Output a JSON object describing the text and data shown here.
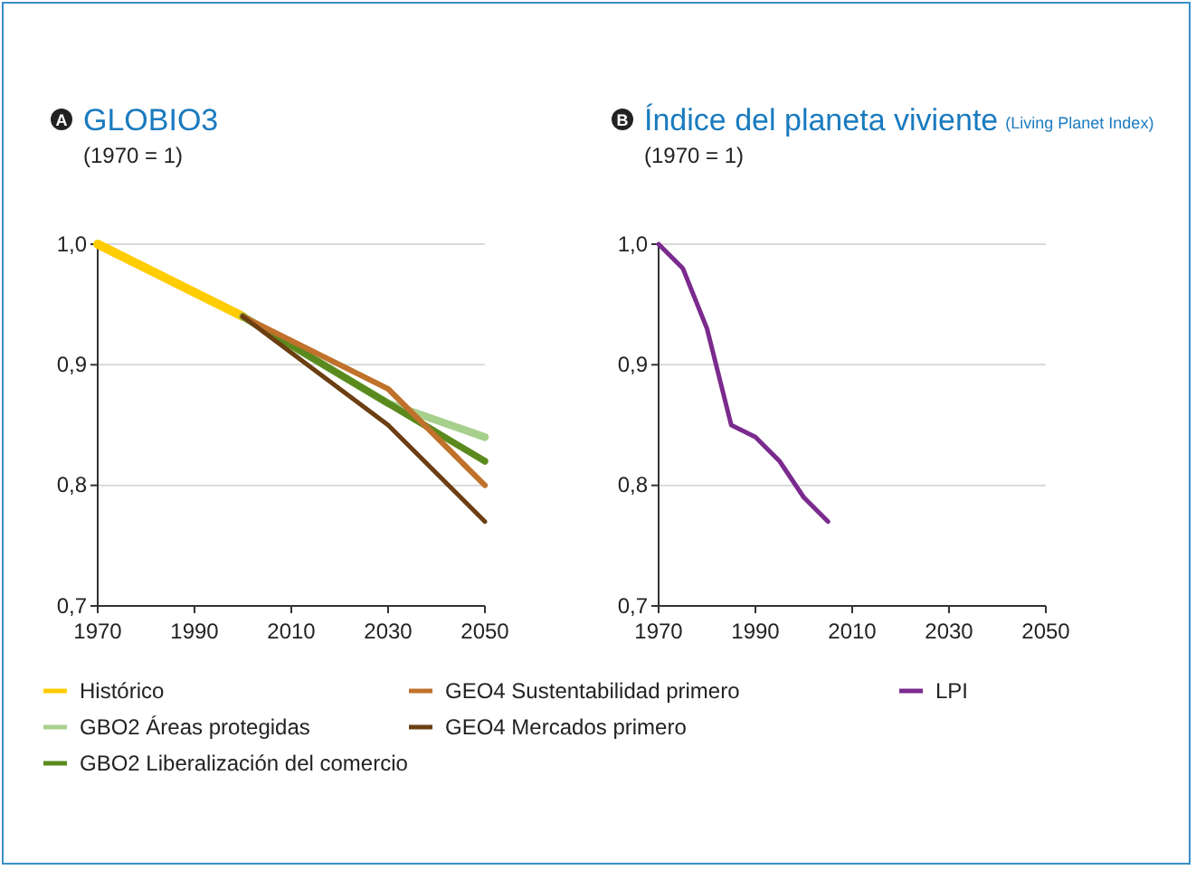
{
  "chart_data": [
    {
      "type": "line",
      "title": "GLOBIO3",
      "subtitle": "(1970 = 1)",
      "annotations": [
        "A"
      ],
      "xlim": [
        1970,
        2050
      ],
      "xticks": [
        1970,
        1990,
        2010,
        2030,
        2050
      ],
      "ylim": [
        0.7,
        1.0
      ],
      "yticks": [
        {
          "value": 0.7,
          "label": "0,7"
        },
        {
          "value": 0.8,
          "label": "0,8"
        },
        {
          "value": 0.9,
          "label": "0,9"
        },
        {
          "value": 1.0,
          "label": "1,0"
        }
      ],
      "grid": "y",
      "legend": "bottom",
      "line_style": "solid",
      "marker": "none",
      "series": [
        {
          "name": "Histórico",
          "color": "#ffcc00",
          "x": [
            1970,
            2000
          ],
          "values": [
            1.0,
            0.94
          ]
        },
        {
          "name": "GBO2 Áreas protegidas",
          "color": "#a8d08d",
          "x": [
            2000,
            2030,
            2050
          ],
          "values": [
            0.94,
            0.868,
            0.84
          ]
        },
        {
          "name": "GBO2 Liberalización del comercio",
          "color": "#5a8a1e",
          "x": [
            2000,
            2030,
            2050
          ],
          "values": [
            0.94,
            0.868,
            0.82
          ]
        },
        {
          "name": "GEO4 Sustentabilidad primero",
          "color": "#c0712b",
          "x": [
            2000,
            2030,
            2050
          ],
          "values": [
            0.94,
            0.88,
            0.8
          ]
        },
        {
          "name": "GEO4 Mercados primero",
          "color": "#6b3f12",
          "x": [
            2000,
            2030,
            2050
          ],
          "values": [
            0.94,
            0.85,
            0.77
          ]
        }
      ]
    },
    {
      "type": "line",
      "title": "Índice del planeta viviente",
      "subtitle": "(1970 = 1)",
      "annotations": [
        "B",
        "(Living Planet Index)"
      ],
      "xlim": [
        1970,
        2050
      ],
      "xticks": [
        1970,
        1990,
        2010,
        2030,
        2050
      ],
      "ylim": [
        0.7,
        1.0
      ],
      "yticks": [
        {
          "value": 0.7,
          "label": "0,7"
        },
        {
          "value": 0.8,
          "label": "0,8"
        },
        {
          "value": 0.9,
          "label": "0,9"
        },
        {
          "value": 1.0,
          "label": "1,0"
        }
      ],
      "grid": "y",
      "legend": "bottom",
      "line_style": "solid",
      "marker": "none",
      "series": [
        {
          "name": "LPI",
          "color": "#7b2a8e",
          "x": [
            1970,
            1975,
            1980,
            1985,
            1990,
            1995,
            2000,
            2005
          ],
          "values": [
            1.0,
            0.98,
            0.93,
            0.85,
            0.84,
            0.82,
            0.79,
            0.77
          ]
        }
      ]
    }
  ]
}
